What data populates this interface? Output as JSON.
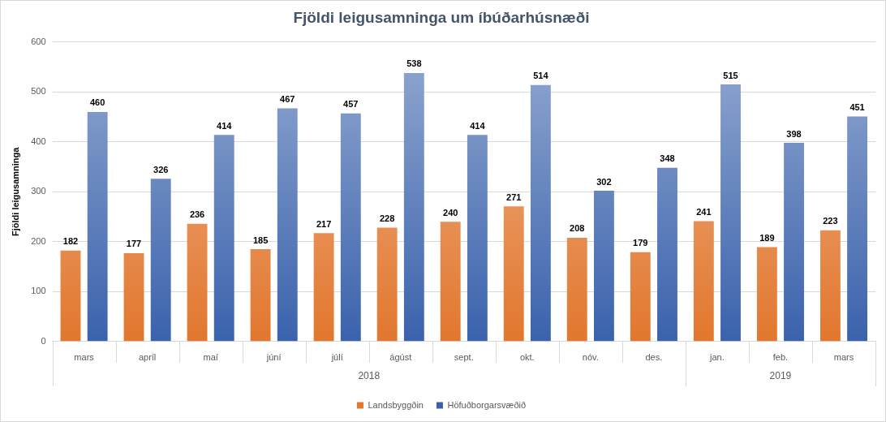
{
  "chart_data": {
    "type": "bar",
    "title": "Fjöldi leigusamninga um íbúðarhúsnæði",
    "y_label": "Fjöldi leigusamninga",
    "categories": [
      "mars",
      "apríl",
      "maí",
      "júní",
      "júlí",
      "ágúst",
      "sept.",
      "okt.",
      "nóv.",
      "des.",
      "jan.",
      "feb.",
      "mars"
    ],
    "category_groups": [
      {
        "label": "2018",
        "size": 10
      },
      {
        "label": "2019",
        "size": 3
      }
    ],
    "series": [
      {
        "name": "Landsbyggðin",
        "color": "#e2772e",
        "values": [
          182,
          177,
          236,
          185,
          217,
          228,
          240,
          271,
          208,
          179,
          241,
          189,
          223
        ]
      },
      {
        "name": "Höfuðborgarsvæðið",
        "color": "#3a62ac",
        "values": [
          460,
          326,
          414,
          467,
          457,
          538,
          414,
          514,
          302,
          348,
          515,
          398,
          451
        ]
      }
    ],
    "ylim": [
      0,
      600
    ],
    "yticks": [
      0,
      100,
      200,
      300,
      400,
      500,
      600
    ],
    "grid": true,
    "legend": "bottom",
    "data_labels": true
  }
}
